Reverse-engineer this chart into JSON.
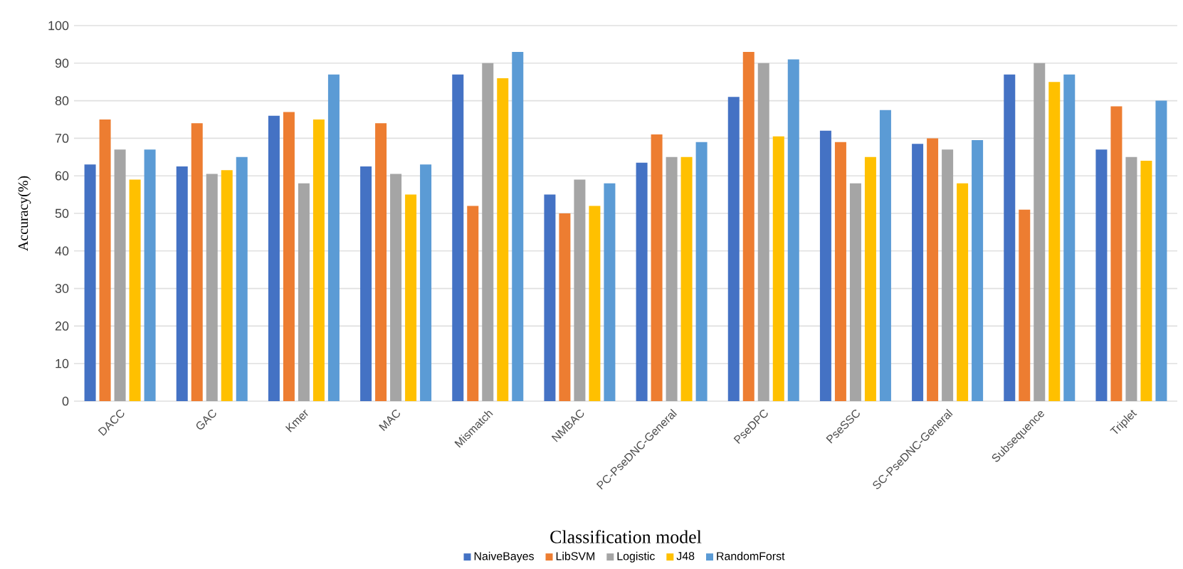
{
  "chart_data": {
    "type": "bar",
    "xlabel": "Classification model",
    "ylabel": "Accuracy(%)",
    "categories": [
      "DACC",
      "GAC",
      "Kmer",
      "MAC",
      "Mismatch",
      "NMBAC",
      "PC-PseDNC-General",
      "PseDPC",
      "PseSSC",
      "SC-PseDNC-General",
      "Subsequence",
      "Triplet"
    ],
    "series": [
      {
        "name": "NaiveBayes",
        "color": "#4472c4",
        "values": [
          63,
          62.5,
          76,
          62.5,
          87,
          55,
          63.5,
          81,
          72,
          68.5,
          87,
          67
        ]
      },
      {
        "name": "LibSVM",
        "color": "#ed7d31",
        "values": [
          75,
          74,
          77,
          74,
          52,
          50,
          71,
          93,
          69,
          70,
          51,
          78.5
        ]
      },
      {
        "name": "Logistic",
        "color": "#a5a5a5",
        "values": [
          67,
          60.5,
          58,
          60.5,
          90,
          59,
          65,
          90,
          58,
          67,
          90,
          65
        ]
      },
      {
        "name": "J48",
        "color": "#ffc000",
        "values": [
          59,
          61.5,
          75,
          55,
          86,
          52,
          65,
          70.5,
          65,
          58,
          85,
          64
        ]
      },
      {
        "name": "RandomForst",
        "color": "#5b9bd5",
        "values": [
          67,
          65,
          87,
          63,
          93,
          58,
          69,
          91,
          77.5,
          69.5,
          87,
          80
        ]
      }
    ],
    "ylim": [
      0,
      100
    ],
    "yticks": [
      0,
      10,
      20,
      30,
      40,
      50,
      60,
      70,
      80,
      90,
      100
    ],
    "grid": "y",
    "legend": "bottom"
  }
}
